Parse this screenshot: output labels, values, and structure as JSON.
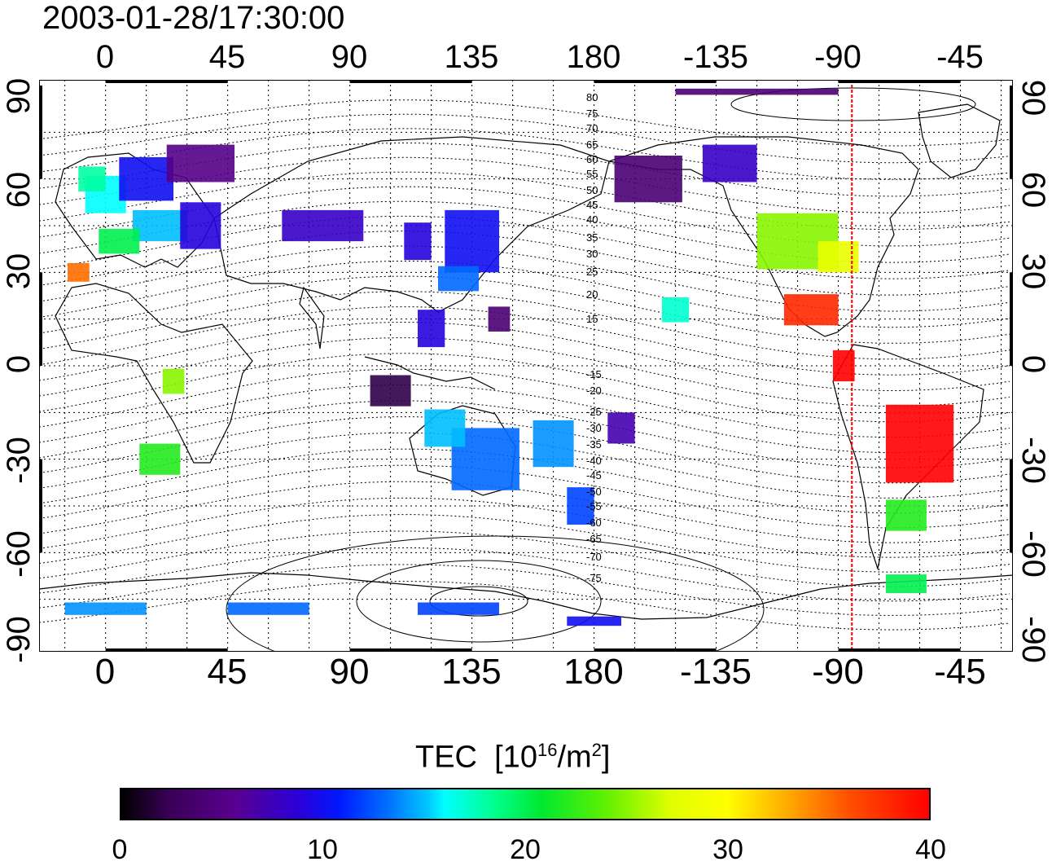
{
  "timestamp": "2003-01-28/17:30:00",
  "lon_labels": [
    "0",
    "45",
    "90",
    "135",
    "180",
    "-135",
    "-90",
    "-45"
  ],
  "lat_labels_left": [
    "90",
    "60",
    "30",
    "0",
    "-30",
    "-60",
    "-90"
  ],
  "lat_labels_right": [
    "90",
    "60",
    "30",
    "0",
    "-30",
    "-60",
    "-90"
  ],
  "contour_labels_north": [
    "80",
    "75",
    "70",
    "65",
    "60",
    "55",
    "50",
    "45",
    "40",
    "35",
    "30",
    "25",
    "20",
    "15"
  ],
  "contour_labels_south": [
    "-15",
    "-20",
    "-25",
    "-30",
    "-35",
    "-40",
    "-45",
    "-50",
    "-55",
    "-60",
    "-65",
    "-70",
    "-75"
  ],
  "colorbar": {
    "title": "TEC",
    "unit_base": "[10",
    "unit_exp1": "16",
    "unit_mid": "/m",
    "unit_exp2": "2",
    "unit_end": "]",
    "min": 0,
    "max": 40,
    "ticks": [
      "0",
      "10",
      "20",
      "30",
      "40"
    ]
  },
  "meridian_marker_lon": -85,
  "meridian_marker_color": "#ff0000",
  "tec_patches": [
    {
      "lon": 0,
      "lat": 55,
      "tec": 16,
      "w": 15,
      "h": 12
    },
    {
      "lon": -5,
      "lat": 60,
      "tec": 18,
      "w": 10,
      "h": 8
    },
    {
      "lon": 15,
      "lat": 60,
      "tec": 10,
      "w": 20,
      "h": 14
    },
    {
      "lon": 35,
      "lat": 65,
      "tec": 5,
      "w": 25,
      "h": 12
    },
    {
      "lon": 20,
      "lat": 45,
      "tec": 15,
      "w": 20,
      "h": 10
    },
    {
      "lon": 5,
      "lat": 40,
      "tec": 20,
      "w": 15,
      "h": 8
    },
    {
      "lon": 35,
      "lat": 45,
      "tec": 9,
      "w": 15,
      "h": 15
    },
    {
      "lon": -10,
      "lat": 30,
      "tec": 35,
      "w": 8,
      "h": 6
    },
    {
      "lon": 80,
      "lat": 45,
      "tec": 8,
      "w": 30,
      "h": 10
    },
    {
      "lon": 115,
      "lat": 40,
      "tec": 9,
      "w": 10,
      "h": 12
    },
    {
      "lon": 135,
      "lat": 40,
      "tec": 10,
      "w": 20,
      "h": 20
    },
    {
      "lon": 130,
      "lat": 28,
      "tec": 13,
      "w": 15,
      "h": 8
    },
    {
      "lon": 120,
      "lat": 12,
      "tec": 9,
      "w": 10,
      "h": 12
    },
    {
      "lon": 145,
      "lat": 15,
      "tec": 4,
      "w": 8,
      "h": 8
    },
    {
      "lon": 105,
      "lat": -8,
      "tec": 2,
      "w": 15,
      "h": 10
    },
    {
      "lon": 140,
      "lat": -30,
      "tec": 13,
      "w": 25,
      "h": 20
    },
    {
      "lon": 125,
      "lat": -20,
      "tec": 15,
      "w": 15,
      "h": 12
    },
    {
      "lon": 165,
      "lat": -25,
      "tec": 14,
      "w": 15,
      "h": 15
    },
    {
      "lon": 175,
      "lat": -45,
      "tec": 12,
      "w": 10,
      "h": 12
    },
    {
      "lon": 190,
      "lat": -20,
      "tec": 7,
      "w": 10,
      "h": 10
    },
    {
      "lon": 210,
      "lat": 18,
      "tec": 17,
      "w": 10,
      "h": 8
    },
    {
      "lon": 200,
      "lat": 60,
      "tec": 4,
      "w": 25,
      "h": 15
    },
    {
      "lon": 230,
      "lat": 65,
      "tec": 8,
      "w": 20,
      "h": 12
    },
    {
      "lon": 255,
      "lat": 40,
      "tec": 25,
      "w": 30,
      "h": 18
    },
    {
      "lon": 270,
      "lat": 35,
      "tec": 28,
      "w": 15,
      "h": 10
    },
    {
      "lon": 260,
      "lat": 18,
      "tec": 38,
      "w": 20,
      "h": 10
    },
    {
      "lon": 272,
      "lat": 0,
      "tec": 40,
      "w": 8,
      "h": 10
    },
    {
      "lon": 300,
      "lat": -25,
      "tec": 40,
      "w": 25,
      "h": 25
    },
    {
      "lon": 295,
      "lat": -48,
      "tec": 22,
      "w": 15,
      "h": 10
    },
    {
      "lon": 295,
      "lat": -70,
      "tec": 20,
      "w": 15,
      "h": 6
    },
    {
      "lon": 20,
      "lat": -30,
      "tec": 22,
      "w": 15,
      "h": 10
    },
    {
      "lon": 25,
      "lat": -5,
      "tec": 25,
      "w": 8,
      "h": 8
    },
    {
      "lon": 0,
      "lat": -78,
      "tec": 14,
      "w": 30,
      "h": 4
    },
    {
      "lon": 60,
      "lat": -78,
      "tec": 13,
      "w": 30,
      "h": 4
    },
    {
      "lon": 130,
      "lat": -78,
      "tec": 12,
      "w": 30,
      "h": 4
    },
    {
      "lon": 180,
      "lat": -82,
      "tec": 10,
      "w": 20,
      "h": 3
    },
    {
      "lon": 240,
      "lat": 88,
      "tec": 4,
      "w": 60,
      "h": 2
    }
  ]
}
